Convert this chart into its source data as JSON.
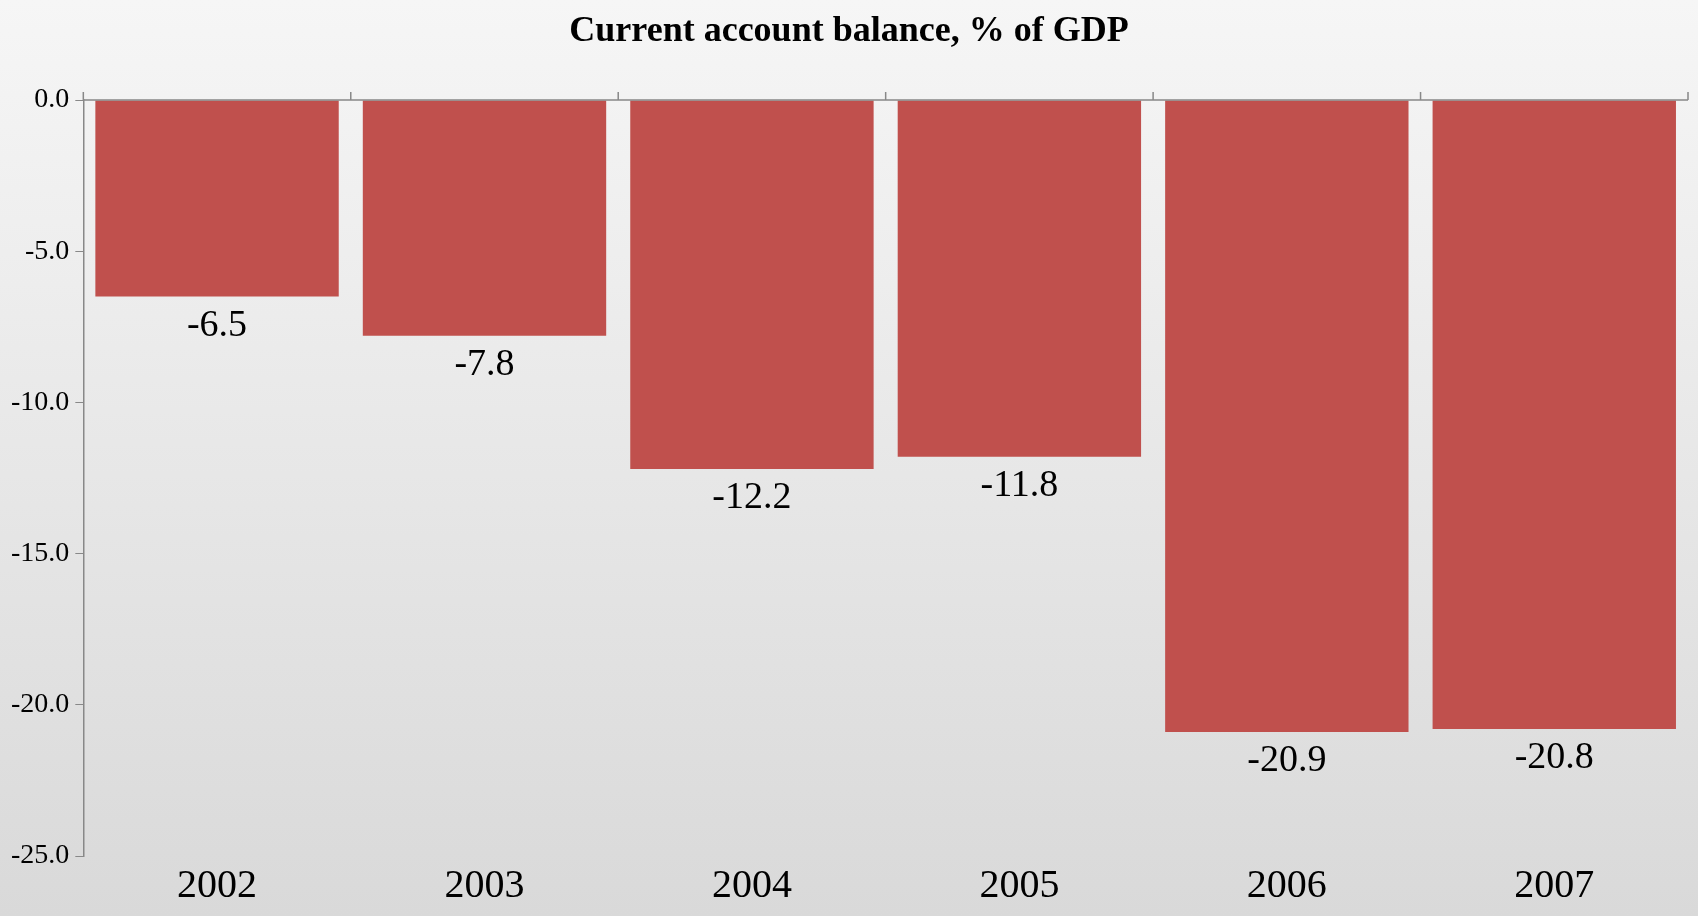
{
  "chart_data": {
    "type": "bar",
    "title": "Current account balance, % of GDP",
    "categories": [
      "2002",
      "2003",
      "2004",
      "2005",
      "2006",
      "2007"
    ],
    "values": [
      -6.5,
      -7.8,
      -12.2,
      -11.8,
      -20.9,
      -20.8
    ],
    "color": "#c0504d",
    "ylim": [
      -25,
      0
    ],
    "yticks": [
      {
        "value": 0,
        "label": "0.0"
      },
      {
        "value": -5,
        "label": "-5.0"
      },
      {
        "value": -10,
        "label": "-10.0"
      },
      {
        "value": -15,
        "label": "-15.0"
      },
      {
        "value": -20,
        "label": "-20.0"
      },
      {
        "value": -25,
        "label": "-25.0"
      }
    ],
    "data_labels": true,
    "grid": false,
    "legend": false
  }
}
